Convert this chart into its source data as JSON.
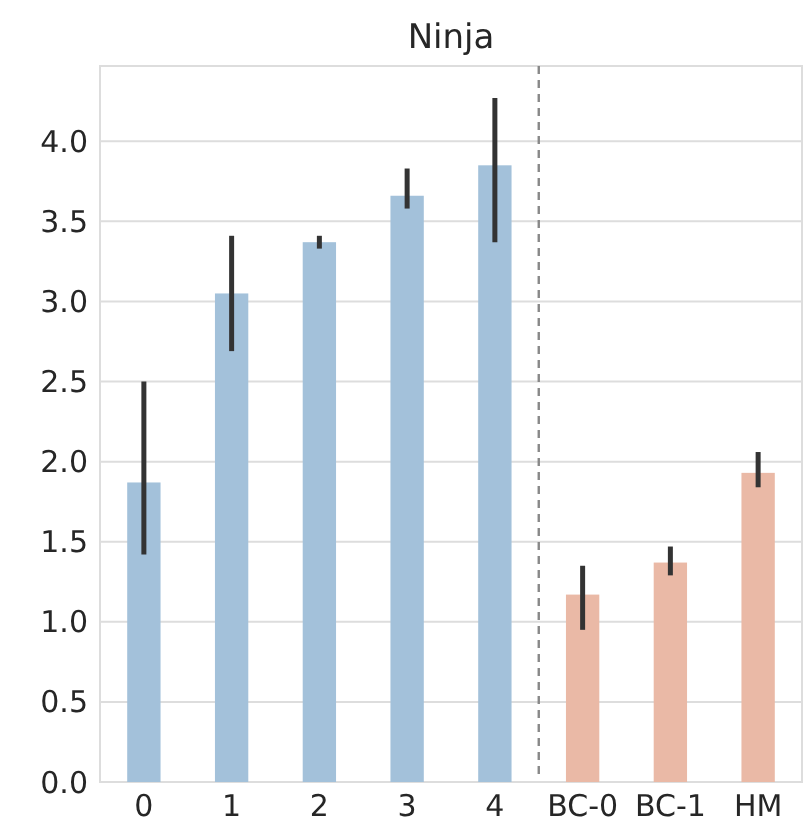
{
  "chart_data": {
    "type": "bar",
    "title": "Ninja",
    "categories": [
      "0",
      "1",
      "2",
      "3",
      "4",
      "BC-0",
      "BC-1",
      "HM"
    ],
    "values": [
      1.87,
      3.05,
      3.37,
      3.66,
      3.85,
      1.17,
      1.37,
      1.93
    ],
    "colors": [
      "#a3c1da",
      "#a3c1da",
      "#a3c1da",
      "#a3c1da",
      "#a3c1da",
      "#eab9a6",
      "#eab9a6",
      "#eab9a6"
    ],
    "errors": [
      [
        1.42,
        2.5
      ],
      [
        2.69,
        3.41
      ],
      [
        3.33,
        3.41
      ],
      [
        3.58,
        3.83
      ],
      [
        3.37,
        4.27
      ],
      [
        0.95,
        1.35
      ],
      [
        1.29,
        1.47
      ],
      [
        1.84,
        2.06
      ]
    ],
    "ylim": [
      0,
      4.47
    ],
    "yticks": [
      {
        "value": 0,
        "label": "0.0"
      },
      {
        "value": 0.5,
        "label": "0.5"
      },
      {
        "value": 1,
        "label": "1.0"
      },
      {
        "value": 1.5,
        "label": "1.5"
      },
      {
        "value": 2,
        "label": "2.0"
      },
      {
        "value": 2.5,
        "label": "2.5"
      },
      {
        "value": 3,
        "label": "3.0"
      },
      {
        "value": 3.5,
        "label": "3.5"
      },
      {
        "value": 4,
        "label": "4.0"
      }
    ],
    "grid": "y"
  }
}
